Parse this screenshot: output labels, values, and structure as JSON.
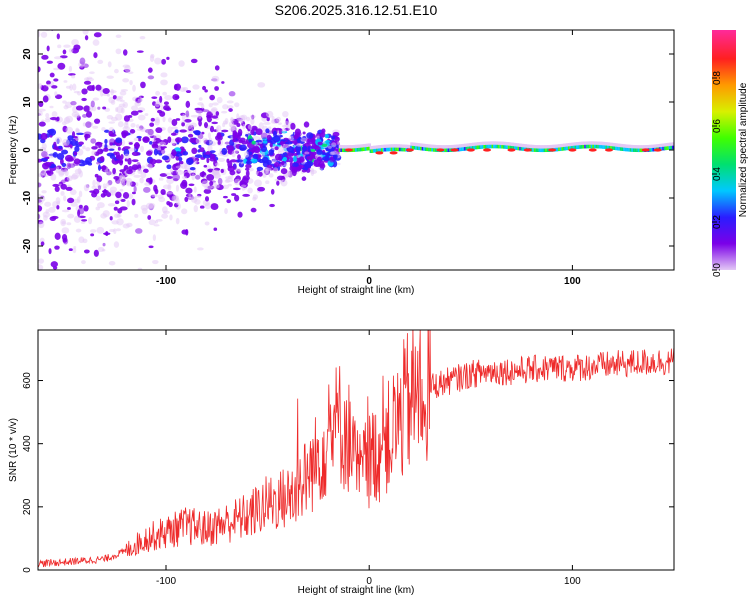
{
  "chart_data": [
    {
      "type": "heatmap",
      "title": "S206.2025.316.12.51.E10",
      "xlabel": "Height of straight line (km)",
      "ylabel": "Frequency (Hz)",
      "xlim": [
        -163,
        150
      ],
      "ylim": [
        -25,
        25
      ],
      "x_ticks": [
        -100,
        0,
        100
      ],
      "y_ticks": [
        -20,
        -10,
        0,
        10,
        20
      ],
      "colorbar": {
        "label": "Normalized spectral amplitude",
        "range": [
          0,
          1
        ],
        "ticks": [
          "0.0",
          "0.2",
          "0.4",
          "0.6",
          "0.8"
        ],
        "tick_values": [
          0,
          0.2,
          0.4,
          0.6,
          0.8
        ],
        "colors": [
          "#e3c8f5",
          "#7b00e8",
          "#2a1dff",
          "#00c8ff",
          "#00e070",
          "#40ff00",
          "#d8f000",
          "#ff9a00",
          "#ff2020",
          "#ff2a9a"
        ]
      },
      "description_points": {
        "band_center_hz": 0,
        "noisy_region_km": [
          -163,
          -20
        ],
        "steady_line_region_km": [
          -15,
          150
        ]
      }
    },
    {
      "type": "line",
      "title": "",
      "xlabel": "Height of straight line (km)",
      "ylabel": "SNR (10 * v/v)",
      "xlim": [
        -163,
        150
      ],
      "ylim": [
        0,
        760
      ],
      "x_ticks": [
        -100,
        0,
        100
      ],
      "y_ticks": [
        0,
        200,
        400,
        600
      ],
      "color": "#ee2a2a",
      "series": [
        {
          "name": "SNR",
          "x": [
            -163,
            -150,
            -140,
            -130,
            -120,
            -110,
            -100,
            -90,
            -80,
            -70,
            -60,
            -50,
            -40,
            -35,
            -30,
            -25,
            -20,
            -15,
            -10,
            -5,
            0,
            5,
            10,
            15,
            20,
            25,
            30,
            40,
            50,
            60,
            70,
            80,
            90,
            100,
            110,
            120,
            130,
            140,
            150
          ],
          "values": [
            20,
            25,
            30,
            35,
            60,
            100,
            120,
            140,
            130,
            150,
            170,
            210,
            230,
            260,
            300,
            360,
            420,
            470,
            420,
            300,
            350,
            380,
            420,
            480,
            540,
            560,
            580,
            600,
            620,
            630,
            630,
            635,
            640,
            640,
            645,
            650,
            655,
            660,
            660
          ]
        }
      ]
    }
  ]
}
